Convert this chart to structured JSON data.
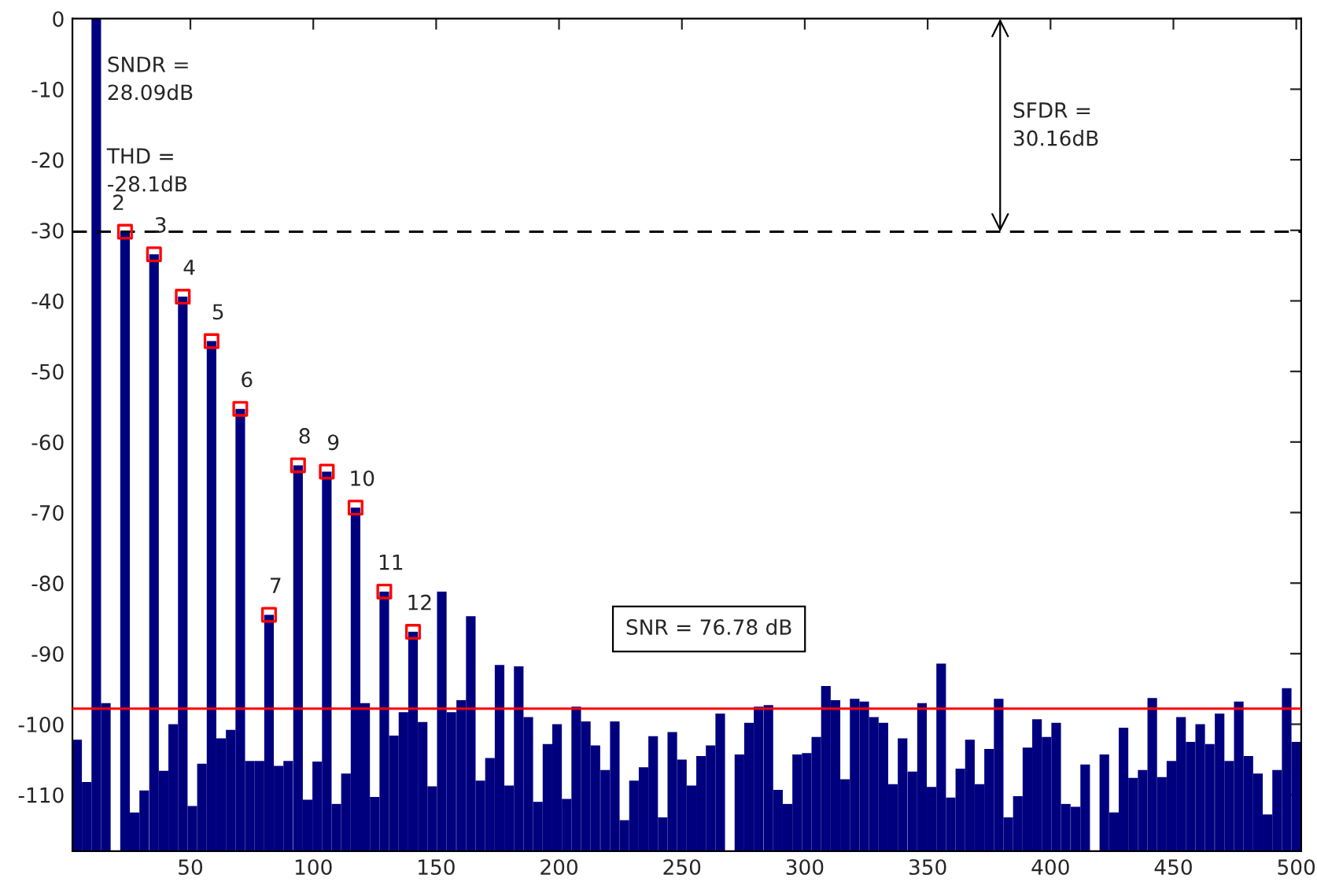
{
  "chart_data": {
    "type": "bar",
    "xlim": [
      2,
      502
    ],
    "ylim": [
      -118,
      0
    ],
    "xticks": [
      50,
      100,
      150,
      200,
      250,
      300,
      350,
      400,
      450,
      500
    ],
    "yticks": [
      0,
      -10,
      -20,
      -30,
      -40,
      -50,
      -60,
      -70,
      -80,
      -90,
      -100,
      -110
    ],
    "grid": false,
    "marker": "square",
    "series": [
      {
        "color": "#00007f",
        "base": [
          -118,
          -118,
          -118,
          -118,
          null,
          -118,
          -118,
          -118,
          -118,
          -118,
          -118,
          -118,
          -118,
          -118,
          -118,
          -118,
          -118,
          -118,
          -118,
          -118,
          -118,
          -118,
          -118,
          -118,
          -118,
          -118,
          -118,
          -118,
          -118,
          -118,
          -118,
          -118,
          -118,
          -118,
          -118,
          -118,
          -118,
          -118,
          -118,
          -118,
          -118,
          -118,
          -118,
          -118,
          -118,
          -118,
          -118,
          -118,
          -118,
          -118,
          -118,
          -118,
          -118,
          -118,
          -118,
          -118,
          -118,
          -118,
          -118,
          -118,
          -118,
          -118,
          -118,
          -118,
          -118,
          -118,
          -118,
          -118,
          null,
          -118,
          -118,
          -118,
          -118,
          -118,
          -118,
          -118,
          -118,
          -118,
          -118,
          -118,
          -118,
          -118,
          -118,
          -118,
          -118,
          -118,
          -118,
          -118,
          -118,
          -118,
          -118,
          -118,
          -118,
          -118,
          -118,
          -118,
          -118,
          -118,
          -118,
          -118,
          -118,
          -118,
          -118,
          -118,
          -118,
          -118,
          null,
          -118,
          -118,
          -118,
          -118,
          -118,
          -118,
          -118,
          -118,
          -118,
          -118,
          -118,
          -118,
          -118,
          -118,
          -118,
          -118,
          -118,
          -118,
          -118,
          -118,
          -118
        ],
        "x": [
          3.9,
          7.8,
          11.7,
          15.6,
          19.5,
          23.4,
          27.3,
          31.2,
          35.2,
          39.1,
          43.0,
          46.9,
          50.8,
          54.7,
          58.6,
          62.5,
          66.4,
          70.3,
          74.2,
          78.1,
          82.0,
          85.9,
          89.8,
          93.8,
          97.7,
          101.6,
          105.5,
          109.4,
          113.3,
          117.2,
          121.1,
          125.0,
          128.9,
          132.8,
          136.7,
          140.6,
          144.5,
          148.4,
          152.3,
          156.2,
          160.2,
          164.1,
          168.0,
          171.9,
          175.8,
          179.7,
          183.6,
          187.5,
          191.4,
          195.3,
          199.2,
          203.1,
          207.0,
          210.9,
          214.8,
          218.8,
          222.7,
          226.6,
          230.5,
          234.4,
          238.3,
          242.2,
          246.1,
          250.0,
          253.9,
          257.8,
          261.7,
          265.6,
          269.5,
          273.4,
          277.3,
          281.2,
          285.2,
          289.1,
          293.0,
          296.9,
          300.8,
          304.7,
          308.6,
          312.5,
          316.4,
          320.3,
          324.2,
          328.1,
          332.0,
          335.9,
          339.8,
          343.8,
          347.7,
          351.6,
          355.5,
          359.4,
          363.3,
          367.2,
          371.1,
          375.0,
          378.9,
          382.8,
          386.7,
          390.6,
          394.5,
          398.4,
          402.3,
          406.2,
          410.2,
          414.1,
          418.0,
          421.9,
          425.8,
          429.7,
          433.6,
          437.5,
          441.4,
          445.3,
          449.2,
          453.1,
          457.0,
          460.9,
          464.8,
          468.8,
          472.7,
          476.6,
          480.5,
          484.4,
          488.3,
          492.2,
          496.1,
          500.0
        ],
        "values": [
          15.8,
          9.8,
          118,
          21.0,
          null,
          87.8,
          5.5,
          8.6,
          84.6,
          11.4,
          18.0,
          78.6,
          6.4,
          12.4,
          72.3,
          16.0,
          17.2,
          62.7,
          12.8,
          12.8,
          33.5,
          12.1,
          12.8,
          54.7,
          7.3,
          12.7,
          53.8,
          6.7,
          11.0,
          48.7,
          21.0,
          7.7,
          36.8,
          16.4,
          19.7,
          31.1,
          18.3,
          9.2,
          36.8,
          19.7,
          21.4,
          33.3,
          10.0,
          13.2,
          26.4,
          9.3,
          26.2,
          19.0,
          7.0,
          15.2,
          18.0,
          7.4,
          20.5,
          18.4,
          15.0,
          11.5,
          18.4,
          4.4,
          10.0,
          11.9,
          16.3,
          4.8,
          16.9,
          13.0,
          9.3,
          13.5,
          15.0,
          19.5,
          null,
          13.7,
          18.2,
          20.5,
          20.7,
          8.7,
          6.7,
          13.7,
          13.9,
          16.2,
          23.4,
          21.4,
          10.2,
          21.6,
          21.2,
          19.0,
          18.2,
          9.5,
          16.0,
          11.3,
          21.0,
          9.1,
          26.6,
          7.6,
          11.7,
          15.8,
          9.5,
          14.5,
          21.6,
          4.8,
          7.8,
          14.7,
          18.7,
          16.2,
          18.2,
          6.7,
          6.3,
          12.3,
          null,
          13.7,
          5.5,
          17.5,
          10.4,
          11.5,
          21.7,
          10.5,
          12.8,
          19.0,
          15.5,
          18.0,
          15.2,
          19.5,
          12.8,
          21.2,
          13.5,
          11.0,
          5.2,
          11.5,
          23.1,
          15.5
        ]
      },
      {
        "type": "scatter",
        "color": "#ff0000",
        "x": [
          23.4,
          35.2,
          46.9,
          58.6,
          70.3,
          82.0,
          93.8,
          105.5,
          117.2,
          128.9,
          140.6
        ],
        "values": [
          -30.2,
          -33.4,
          -39.4,
          -45.7,
          -55.3,
          -84.5,
          -63.3,
          -64.2,
          -69.3,
          -81.2,
          -86.9
        ]
      }
    ],
    "ref_lines": [
      {
        "axis": "y",
        "value": -30.2,
        "color": "#000000",
        "line_style": "dashed"
      },
      {
        "axis": "y",
        "value": -97.8,
        "color": "#ff0000",
        "line_style": "solid"
      }
    ],
    "annotations": [
      "SNDR =\n28.09dB",
      "THD =\n-28.1dB",
      "SFDR =\n30.16dB",
      "SNR = 76.78 dB",
      {
        "text": "2",
        "x": 23.4,
        "y": -30.2
      },
      {
        "text": "3",
        "x": 35.2,
        "y": -33.4
      },
      {
        "text": "4",
        "x": 46.9,
        "y": -39.4
      },
      {
        "text": "5",
        "x": 58.6,
        "y": -45.7
      },
      {
        "text": "6",
        "x": 70.3,
        "y": -55.3
      },
      {
        "text": "7",
        "x": 82.0,
        "y": -84.5
      },
      {
        "text": "8",
        "x": 93.8,
        "y": -63.3
      },
      {
        "text": "9",
        "x": 105.5,
        "y": -64.2
      },
      {
        "text": "10",
        "x": 117.2,
        "y": -69.3
      },
      {
        "text": "11",
        "x": 128.9,
        "y": -81.2
      },
      {
        "text": "12",
        "x": 140.6,
        "y": -86.9
      }
    ]
  }
}
